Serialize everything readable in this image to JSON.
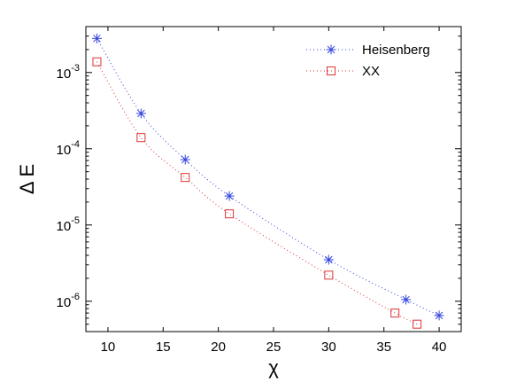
{
  "chart_data": {
    "type": "line",
    "title": "",
    "xlabel": "χ",
    "ylabel": "Δ E",
    "xlim": [
      8,
      42
    ],
    "ylim": [
      4e-07,
      0.004
    ],
    "yscale": "log",
    "grid": false,
    "legend_position": "top-right",
    "x_ticks": [
      10,
      15,
      20,
      25,
      30,
      35,
      40
    ],
    "y_ticks": [
      {
        "value": 0.001,
        "base": "10",
        "exp": "-3"
      },
      {
        "value": 0.0001,
        "base": "10",
        "exp": "-4"
      },
      {
        "value": 1e-05,
        "base": "10",
        "exp": "-5"
      },
      {
        "value": 1e-06,
        "base": "10",
        "exp": "-6"
      }
    ],
    "series": [
      {
        "name": "Heisenberg",
        "color": "#3344dd",
        "marker": "asterisk",
        "line_style": "dotted",
        "x": [
          9,
          13,
          17,
          21,
          30,
          37,
          40
        ],
        "y": [
          0.0028,
          0.00029,
          7.2e-05,
          2.4e-05,
          3.5e-06,
          1.05e-06,
          6.5e-07
        ]
      },
      {
        "name": "XX",
        "color": "#dd3333",
        "marker": "square",
        "line_style": "dotted",
        "x": [
          9,
          13,
          17,
          21,
          30,
          36,
          38
        ],
        "y": [
          0.00138,
          0.00014,
          4.2e-05,
          1.4e-05,
          2.2e-06,
          7e-07,
          5e-07
        ]
      }
    ]
  }
}
